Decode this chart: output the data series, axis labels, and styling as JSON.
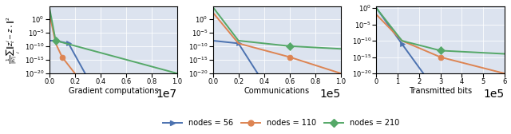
{
  "ylabel": "$\\frac{1}{|\\mathcal{W}|}\\sum_{i}\\|z^i_t - z_\\star\\|^2$",
  "subplot1": {
    "xlabel": "Gradient computations",
    "xlim": [
      0,
      10000000.0
    ],
    "ylim": [
      1e-20,
      30000.0
    ],
    "blue": {
      "x": [
        0,
        500000.0,
        1500000.0,
        2800000.0
      ],
      "y": [
        1e-08,
        1e-08,
        1e-09,
        1e-20
      ],
      "mx": [
        1500000.0
      ],
      "my": [
        1e-09
      ]
    },
    "orange": {
      "x": [
        0,
        500000.0,
        1000000.0,
        2000000.0
      ],
      "y": [
        200.0,
        1e-09,
        1e-14,
        1e-20
      ],
      "mx": [
        1000000.0
      ],
      "my": [
        1e-14
      ]
    },
    "green": {
      "x": [
        0,
        500000.0,
        10000000.0
      ],
      "y": [
        20000.0,
        1e-08,
        1e-20
      ],
      "mx": [
        500000.0
      ],
      "my": [
        1e-08
      ]
    }
  },
  "subplot2": {
    "xlabel": "Communications",
    "xlim": [
      0,
      100000.0
    ],
    "ylim": [
      1e-20,
      30000.0
    ],
    "blue": {
      "x": [
        0,
        20000.0,
        35000.0
      ],
      "y": [
        1e-08,
        1e-09,
        1e-20
      ],
      "mx": [
        20000.0
      ],
      "my": [
        1e-09
      ]
    },
    "orange": {
      "x": [
        0,
        20000.0,
        60000.0,
        100000.0
      ],
      "y": [
        200.0,
        1e-09,
        1e-14,
        1e-20
      ],
      "mx": [
        60000.0
      ],
      "my": [
        1e-14
      ]
    },
    "green": {
      "x": [
        0,
        20000.0,
        60000.0,
        100000.0
      ],
      "y": [
        20000.0,
        1e-08,
        1e-10,
        1e-11
      ],
      "mx": [
        60000.0
      ],
      "my": [
        1e-10
      ]
    }
  },
  "subplot3": {
    "xlabel": "Transmitted bits",
    "xlim": [
      0,
      600000.0
    ],
    "ylim": [
      1e-20,
      3.0
    ],
    "blue": {
      "x": [
        0,
        120000.0,
        220000.0
      ],
      "y": [
        1.0,
        1e-11,
        1e-20
      ],
      "mx": [
        120000.0
      ],
      "my": [
        1e-11
      ]
    },
    "orange": {
      "x": [
        0,
        120000.0,
        300000.0,
        600000.0
      ],
      "y": [
        0.01,
        1e-10,
        1e-15,
        1e-20
      ],
      "mx": [
        300000.0
      ],
      "my": [
        1e-15
      ]
    },
    "green": {
      "x": [
        0,
        120000.0,
        300000.0,
        600000.0
      ],
      "y": [
        1.0,
        1e-10,
        1e-13,
        1e-14
      ],
      "mx": [
        300000.0
      ],
      "my": [
        1e-13
      ]
    }
  },
  "colors": {
    "blue": "#4c72b0",
    "orange": "#dd8452",
    "green": "#55a868"
  },
  "legend": [
    "nodes = 56",
    "nodes = 110",
    "nodes = 210"
  ],
  "bg_color": "#dce3ef",
  "marker_size": 5,
  "linewidth": 1.4
}
